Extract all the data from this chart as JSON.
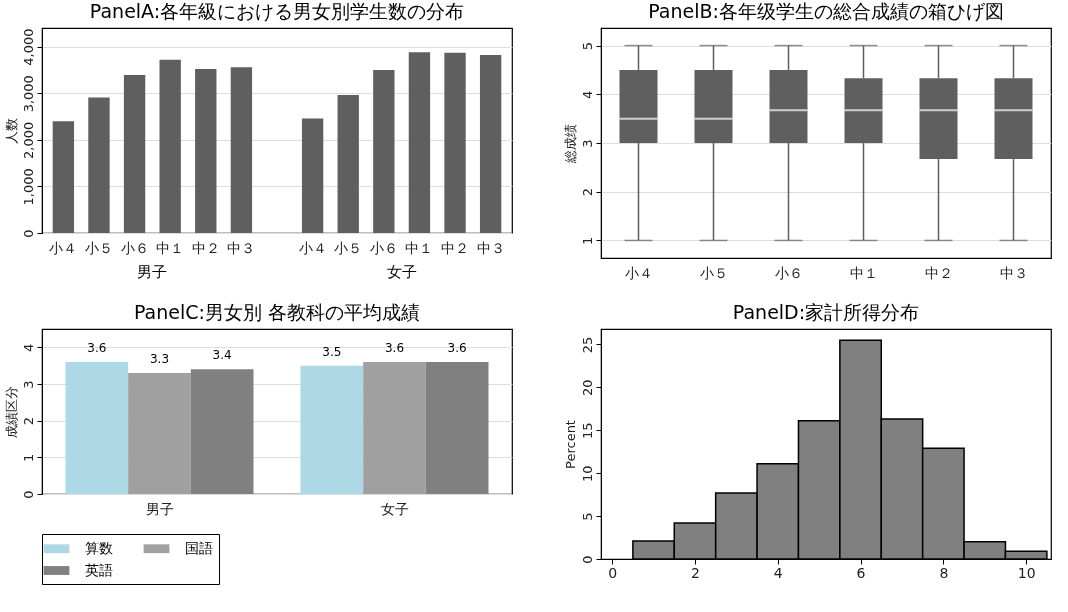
{
  "chart_data": [
    {
      "type": "bar",
      "title": "PanelA:各年級における男女別学生数の分布",
      "ylabel": "人数",
      "categories": [
        "小４",
        "小５",
        "小６",
        "中１",
        "中２",
        "中３",
        "小４",
        "小５",
        "小６",
        "中１",
        "中２",
        "中３"
      ],
      "values": [
        2400,
        2910,
        3390,
        3720,
        3520,
        3560,
        2460,
        2960,
        3500,
        3880,
        3870,
        3820
      ],
      "color": "#5f5f5f",
      "annotations": [
        "男子",
        "女子"
      ],
      "ylim": [
        0,
        4400
      ],
      "yticks": [
        0,
        {
          "value": 1000,
          "label": "1,000"
        },
        {
          "value": 2000,
          "label": "2,000"
        },
        {
          "value": 3000,
          "label": "3,000"
        },
        {
          "value": 4000,
          "label": "4,000"
        }
      ],
      "grid": "y"
    },
    {
      "type": "box",
      "title": "PanelB:各年级学生の総合成績の箱ひげ図",
      "ylabel": "総成绩",
      "categories": [
        "小４",
        "小５",
        "小６",
        "中１",
        "中２",
        "中３"
      ],
      "color": "#5f5f5f",
      "boxes": [
        {
          "low": 1,
          "q1": 3,
          "median": 3.5,
          "q3": 4.5,
          "high": 5
        },
        {
          "low": 1,
          "q1": 3,
          "median": 3.5,
          "q3": 4.5,
          "high": 5
        },
        {
          "low": 1,
          "q1": 3,
          "median": 3.67,
          "q3": 4.5,
          "high": 5
        },
        {
          "low": 1,
          "q1": 3,
          "median": 3.67,
          "q3": 4.33,
          "high": 5
        },
        {
          "low": 1,
          "q1": 2.67,
          "median": 3.67,
          "q3": 4.33,
          "high": 5
        },
        {
          "low": 1,
          "q1": 2.67,
          "median": 3.67,
          "q3": 4.33,
          "high": 5
        }
      ],
      "ylim": [
        0.64,
        5.36
      ],
      "yticks": [
        1,
        2,
        3,
        4,
        5
      ],
      "grid": "y"
    },
    {
      "type": "bar",
      "title": "PanelC:男女別 各教科の平均成績",
      "ylabel": "成績区分",
      "categories": [
        "男子",
        "女子"
      ],
      "series": [
        {
          "name": "算数",
          "color": "#add8e6",
          "values": [
            3.6,
            3.5
          ]
        },
        {
          "name": "国語",
          "color": "#a0a0a0",
          "values": [
            3.3,
            3.6
          ]
        },
        {
          "name": "英語",
          "color": "#808080",
          "values": [
            3.4,
            3.6
          ]
        }
      ],
      "ylim": [
        0,
        4.5
      ],
      "yticks": [
        0,
        1,
        2,
        3,
        4
      ],
      "grid": "y",
      "legend": "bottom",
      "data_labels": true
    },
    {
      "type": "histogram",
      "title": "PanelD:家計所得分布",
      "ylabel": "Percent",
      "color": "#808080",
      "bins": [
        0.5,
        1.5,
        2.5,
        3.5,
        4.5,
        5.5,
        6.5,
        7.5,
        8.5,
        9.5,
        10.5
      ],
      "values": [
        2.1,
        4.2,
        7.7,
        11.1,
        16.1,
        25.5,
        16.3,
        12.9,
        2.0,
        0.9
      ],
      "xlim": [
        -0.27,
        10.6
      ],
      "xticks": [
        0,
        2,
        4,
        6,
        8,
        10
      ],
      "ylim": [
        0,
        26.8
      ],
      "yticks": [
        0,
        5,
        10,
        15,
        20,
        25
      ]
    }
  ]
}
